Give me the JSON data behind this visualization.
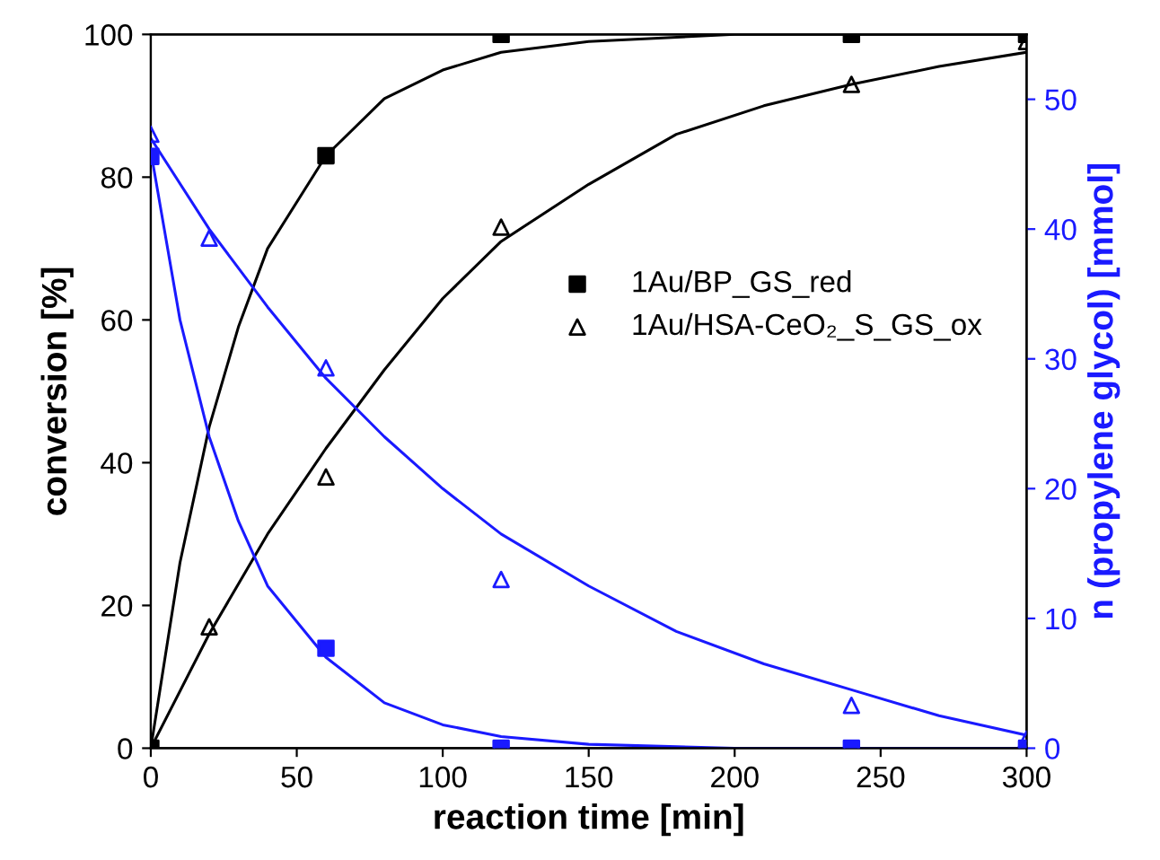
{
  "chart_data": {
    "type": "scatter",
    "xlabel": "reaction time [min]",
    "ylabel": "conversion [%]",
    "y2label": "n (propylene glycol) [mmol]",
    "xlim": [
      0,
      300
    ],
    "xticks": [
      0,
      50,
      100,
      150,
      200,
      250,
      300
    ],
    "ylim": [
      0,
      100
    ],
    "yticks": [
      0,
      20,
      40,
      60,
      80,
      100
    ],
    "y2lim": [
      0,
      55
    ],
    "y2ticks": [
      0,
      10,
      20,
      30,
      40,
      50
    ],
    "grid": false,
    "legend": "right",
    "series": [
      {
        "name": "1Au/BP_GS_red",
        "marker": "square",
        "color": "#000000",
        "x": [
          0,
          60,
          120,
          240,
          300
        ],
        "values": [
          0,
          83,
          100,
          100,
          100
        ]
      },
      {
        "name": "1Au/HSA-CeO₂_S_GS_ox",
        "marker": "triangle",
        "color": "#000000",
        "x": [
          20,
          60,
          120,
          240,
          300
        ],
        "values": [
          17,
          38,
          73,
          93,
          99
        ]
      },
      {
        "marker": "square",
        "color": "#1a1aff",
        "axis": "y2",
        "x": [
          0,
          60,
          120,
          240,
          300
        ],
        "values": [
          45.6,
          7.7,
          0,
          0,
          0
        ]
      },
      {
        "marker": "triangle",
        "color": "#1a1aff",
        "axis": "y2",
        "x": [
          0,
          20,
          60,
          120,
          240,
          300
        ],
        "values": [
          47.3,
          39.3,
          29.3,
          13,
          3.3,
          0.7
        ]
      },
      {
        "type": "line",
        "marker": "none",
        "color": "#000000",
        "x": [
          0,
          10,
          20,
          30,
          40,
          60,
          80,
          100,
          120,
          150,
          200,
          300
        ],
        "values": [
          0,
          26,
          45,
          59,
          70,
          83,
          91,
          95,
          97.5,
          99,
          100,
          100
        ]
      },
      {
        "type": "line",
        "marker": "none",
        "color": "#000000",
        "x": [
          0,
          20,
          40,
          60,
          80,
          100,
          120,
          150,
          180,
          210,
          240,
          270,
          300
        ],
        "values": [
          0,
          16,
          30,
          42,
          53,
          63,
          71,
          79,
          86,
          90,
          93,
          95.5,
          97.5
        ]
      },
      {
        "type": "line",
        "marker": "none",
        "color": "#1a1aff",
        "axis": "y2",
        "x": [
          0,
          10,
          20,
          30,
          40,
          60,
          80,
          100,
          120,
          150,
          200,
          300
        ],
        "values": [
          46,
          33,
          24,
          17.5,
          12.5,
          7,
          3.5,
          1.8,
          0.9,
          0.3,
          0,
          0
        ]
      },
      {
        "type": "line",
        "marker": "none",
        "color": "#1a1aff",
        "axis": "y2",
        "x": [
          0,
          20,
          40,
          60,
          80,
          100,
          120,
          150,
          180,
          210,
          240,
          270,
          300
        ],
        "values": [
          47,
          40,
          34,
          28.5,
          24,
          20,
          16.5,
          12.5,
          9,
          6.5,
          4.5,
          2.5,
          1
        ]
      }
    ]
  }
}
